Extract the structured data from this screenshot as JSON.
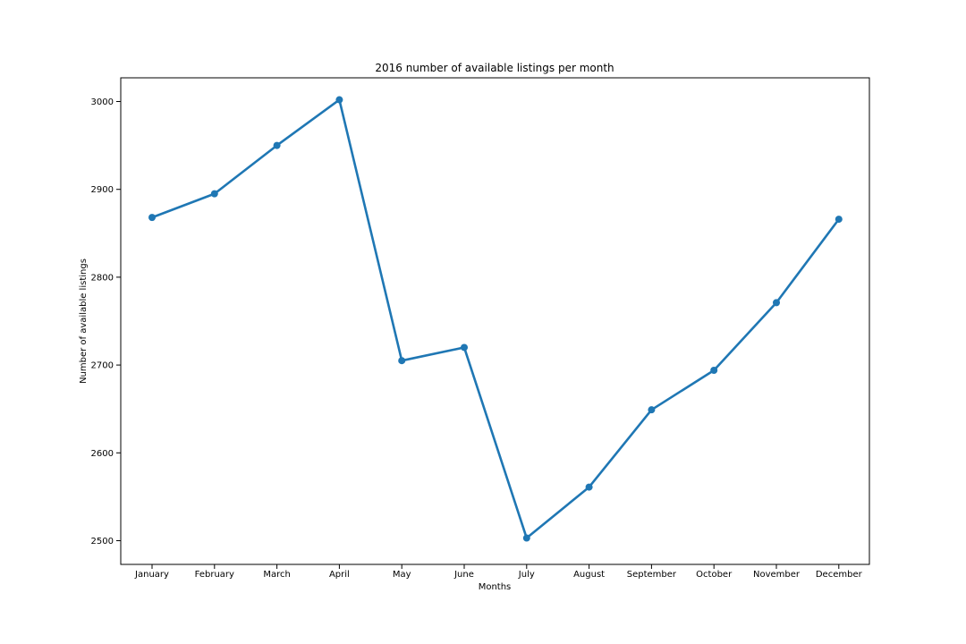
{
  "chart_data": {
    "type": "line",
    "title": "2016 number of available listings per month",
    "xlabel": "Months",
    "ylabel": "Number of available listings",
    "categories": [
      "January",
      "February",
      "March",
      "April",
      "May",
      "June",
      "July",
      "August",
      "September",
      "October",
      "November",
      "December"
    ],
    "series": [
      {
        "values": [
          2868,
          2895,
          2950,
          3002,
          2705,
          2720,
          2503,
          2561,
          2649,
          2694,
          2771,
          2866
        ]
      }
    ],
    "ylim": [
      2473,
      3027
    ],
    "yticks": [
      2500,
      2600,
      2700,
      2800,
      2900,
      3000
    ],
    "grid": false,
    "legend": false,
    "colors": {
      "line": "#1f77b4",
      "marker": "#1f77b4",
      "axes": "#000000"
    }
  }
}
